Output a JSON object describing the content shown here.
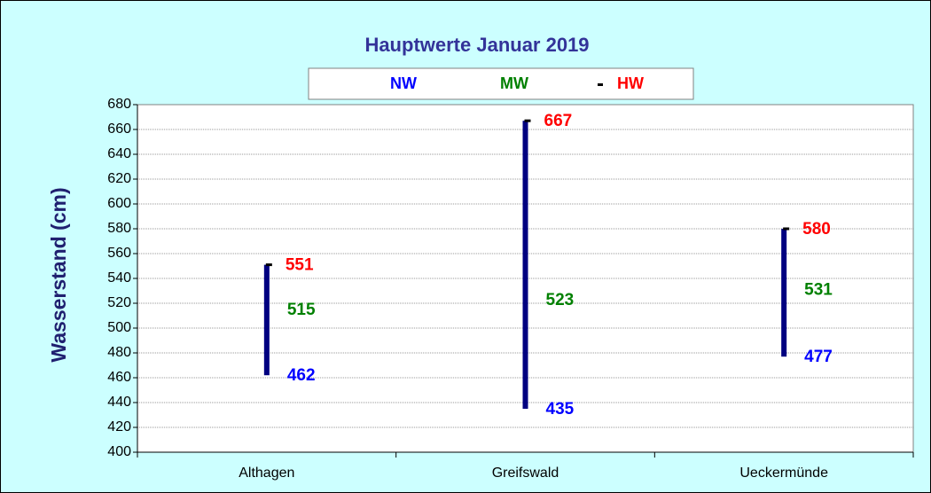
{
  "chart_data": {
    "type": "hilo",
    "title": "Hauptwerte  Januar 2019",
    "y_label": "Wasserstand (cm)",
    "categories": [
      "Althagen",
      "Greifswald",
      "Ueckermünde"
    ],
    "series": [
      {
        "name": "NW",
        "color": "#0000ff",
        "values": [
          462,
          435,
          477
        ]
      },
      {
        "name": "MW",
        "color": "#008000",
        "values": [
          515,
          523,
          531
        ]
      },
      {
        "name": "HW",
        "color": "#ff0000",
        "values": [
          551,
          667,
          580
        ]
      }
    ],
    "bar_color": "#000080",
    "hw_marker_color": "#000000",
    "ylim": [
      400,
      680
    ],
    "yticks": [
      400,
      420,
      440,
      460,
      480,
      500,
      520,
      540,
      560,
      580,
      600,
      620,
      640,
      660,
      680
    ],
    "grid": true
  }
}
